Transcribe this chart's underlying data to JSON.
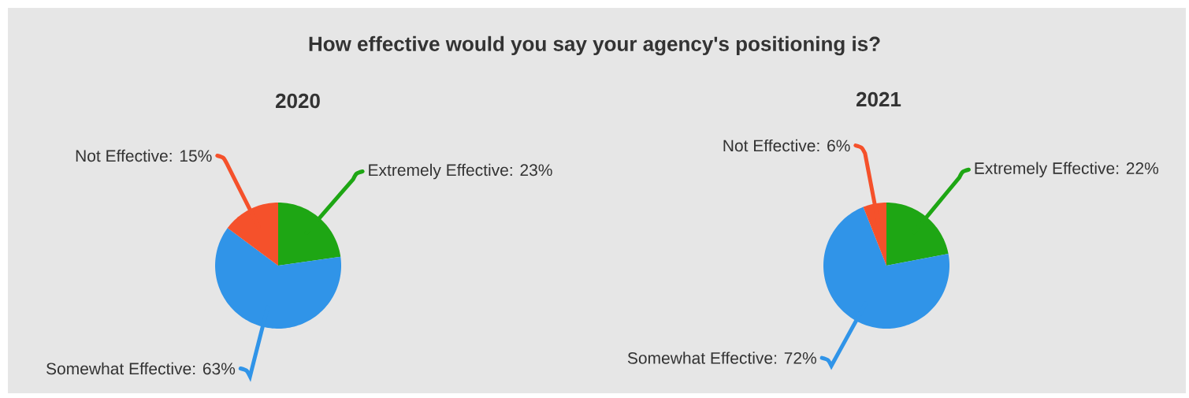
{
  "chart_data": [
    {
      "type": "pie",
      "title": "How effective would you say your agency's positioning is?",
      "subtitle": "2020",
      "categories": [
        "Extremely Effective: 23%",
        "Somewhat Effective: 63%",
        "Not Effective: 15%"
      ],
      "values": [
        23,
        63,
        15
      ],
      "colors": [
        "#1ea614",
        "#3094e8",
        "#f5512b"
      ]
    },
    {
      "type": "pie",
      "title": "2021",
      "categories": [
        "Extremely Effective: 22%",
        "Somewhat Effective: 72%",
        "Not Effective: 6%"
      ],
      "values": [
        22,
        72,
        6
      ],
      "colors": [
        "#1ea614",
        "#3094e8",
        "#f5512b"
      ]
    }
  ]
}
